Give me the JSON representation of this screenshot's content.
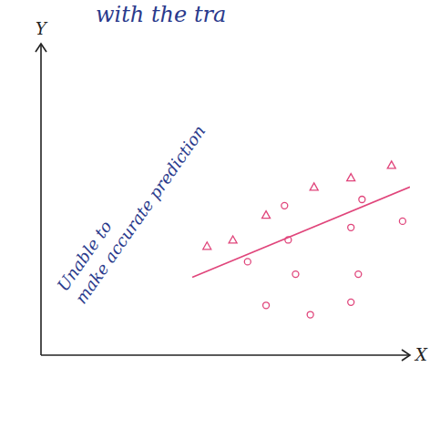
{
  "chart_data": {
    "type": "scatter",
    "title": "with the tra",
    "x_label": "X",
    "y_label": "Y",
    "annotation": [
      "Unable to",
      "make accurate prediction"
    ],
    "xlim": [
      0,
      10
    ],
    "ylim": [
      0,
      10
    ],
    "xticks": [],
    "yticks": [],
    "tick_labels": false,
    "grid": false,
    "series": [
      {
        "type": "scatter",
        "marker": "triangle",
        "color": "#e0457b",
        "x": [
          4.5,
          5.2,
          6.1,
          7.4,
          8.4,
          9.5
        ],
        "values": [
          3.5,
          3.7,
          4.5,
          5.4,
          5.7,
          6.1
        ]
      },
      {
        "type": "scatter",
        "marker": "circle",
        "color": "#e0457b",
        "x": [
          5.6,
          6.7,
          8.7,
          6.6,
          8.4,
          9.8,
          6.9,
          8.6,
          6.1,
          7.3,
          8.4
        ],
        "values": [
          3.0,
          3.7,
          5.0,
          4.8,
          4.1,
          4.3,
          2.6,
          2.6,
          1.6,
          1.3,
          1.7
        ]
      },
      {
        "type": "line",
        "line_style": "solid",
        "color": "#e0457b",
        "x": [
          4.1,
          10
        ],
        "values": [
          2.5,
          5.4
        ]
      }
    ]
  }
}
